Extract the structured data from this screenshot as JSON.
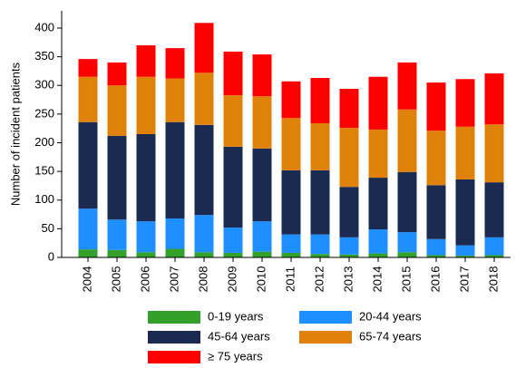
{
  "chart_data": {
    "type": "stacked-bar",
    "y_label": "Number of incident patients",
    "categories": [
      "2004",
      "2005",
      "2006",
      "2007",
      "2008",
      "2009",
      "2010",
      "2011",
      "2012",
      "2013",
      "2014",
      "2015",
      "2016",
      "2017",
      "2018"
    ],
    "series": [
      {
        "name": "0-19 years",
        "color": "#33a02c",
        "values": [
          14,
          13,
          9,
          15,
          9,
          8,
          10,
          8,
          6,
          5,
          7,
          9,
          4,
          3,
          4
        ]
      },
      {
        "name": "20-44 years",
        "color": "#1e8fff",
        "values": [
          71,
          53,
          54,
          53,
          65,
          44,
          53,
          32,
          34,
          30,
          42,
          35,
          28,
          18,
          31
        ]
      },
      {
        "name": "45-64 years",
        "color": "#1a2a50",
        "values": [
          151,
          146,
          152,
          168,
          157,
          141,
          127,
          112,
          112,
          88,
          90,
          105,
          94,
          115,
          96
        ]
      },
      {
        "name": "65-74 years",
        "color": "#e0820a",
        "values": [
          79,
          88,
          100,
          76,
          91,
          90,
          91,
          91,
          82,
          103,
          84,
          109,
          95,
          92,
          101
        ]
      },
      {
        "name": "≥ 75 years",
        "color": "#ff0000",
        "values": [
          31,
          40,
          55,
          53,
          87,
          76,
          73,
          64,
          79,
          68,
          92,
          82,
          84,
          83,
          89
        ]
      }
    ],
    "ylim": [
      0,
      430
    ],
    "yticks": [
      0,
      50,
      100,
      150,
      200,
      250,
      300,
      350,
      400
    ]
  }
}
